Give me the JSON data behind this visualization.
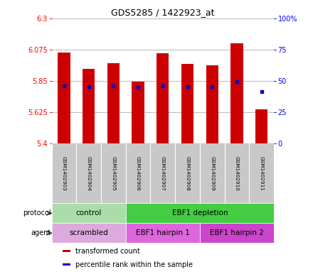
{
  "title": "GDS5285 / 1422923_at",
  "samples": [
    "GSM1402903",
    "GSM1402904",
    "GSM1402905",
    "GSM1402906",
    "GSM1402907",
    "GSM1402908",
    "GSM1402909",
    "GSM1402910",
    "GSM1402911"
  ],
  "bar_values": [
    6.055,
    5.935,
    5.975,
    5.845,
    6.05,
    5.97,
    5.96,
    6.12,
    5.645
  ],
  "bar_base": 5.4,
  "percentile_values": [
    5.815,
    5.81,
    5.815,
    5.805,
    5.815,
    5.81,
    5.81,
    5.845,
    5.775
  ],
  "percentile_axis_values": [
    5.4,
    5.625,
    5.85,
    6.075,
    6.3
  ],
  "percentile_axis_labels": [
    "0",
    "25",
    "50",
    "75",
    "100%"
  ],
  "y_left_ticks": [
    5.4,
    5.625,
    5.85,
    6.075,
    6.3
  ],
  "y_left_labels": [
    "5.4",
    "5.625",
    "5.85",
    "6.075",
    "6.3"
  ],
  "ylim": [
    5.4,
    6.3
  ],
  "bar_color": "#cc0000",
  "percentile_color": "#0000cc",
  "plot_bg": "#ffffff",
  "protocol_groups": [
    {
      "label": "control",
      "start": 0,
      "end": 3,
      "color": "#aaddaa"
    },
    {
      "label": "EBF1 depletion",
      "start": 3,
      "end": 9,
      "color": "#44cc44"
    }
  ],
  "agent_groups": [
    {
      "label": "scrambled",
      "start": 0,
      "end": 3,
      "color": "#ddaadd"
    },
    {
      "label": "EBF1 hairpin 1",
      "start": 3,
      "end": 6,
      "color": "#dd66dd"
    },
    {
      "label": "EBF1 hairpin 2",
      "start": 6,
      "end": 9,
      "color": "#cc44cc"
    }
  ],
  "legend_items": [
    {
      "label": "transformed count",
      "color": "#cc0000"
    },
    {
      "label": "percentile rank within the sample",
      "color": "#0000cc"
    }
  ],
  "bar_width": 0.5,
  "protocol_label": "protocol",
  "agent_label": "agent",
  "names_bg": "#c8c8c8",
  "names_divider": "#ffffff"
}
